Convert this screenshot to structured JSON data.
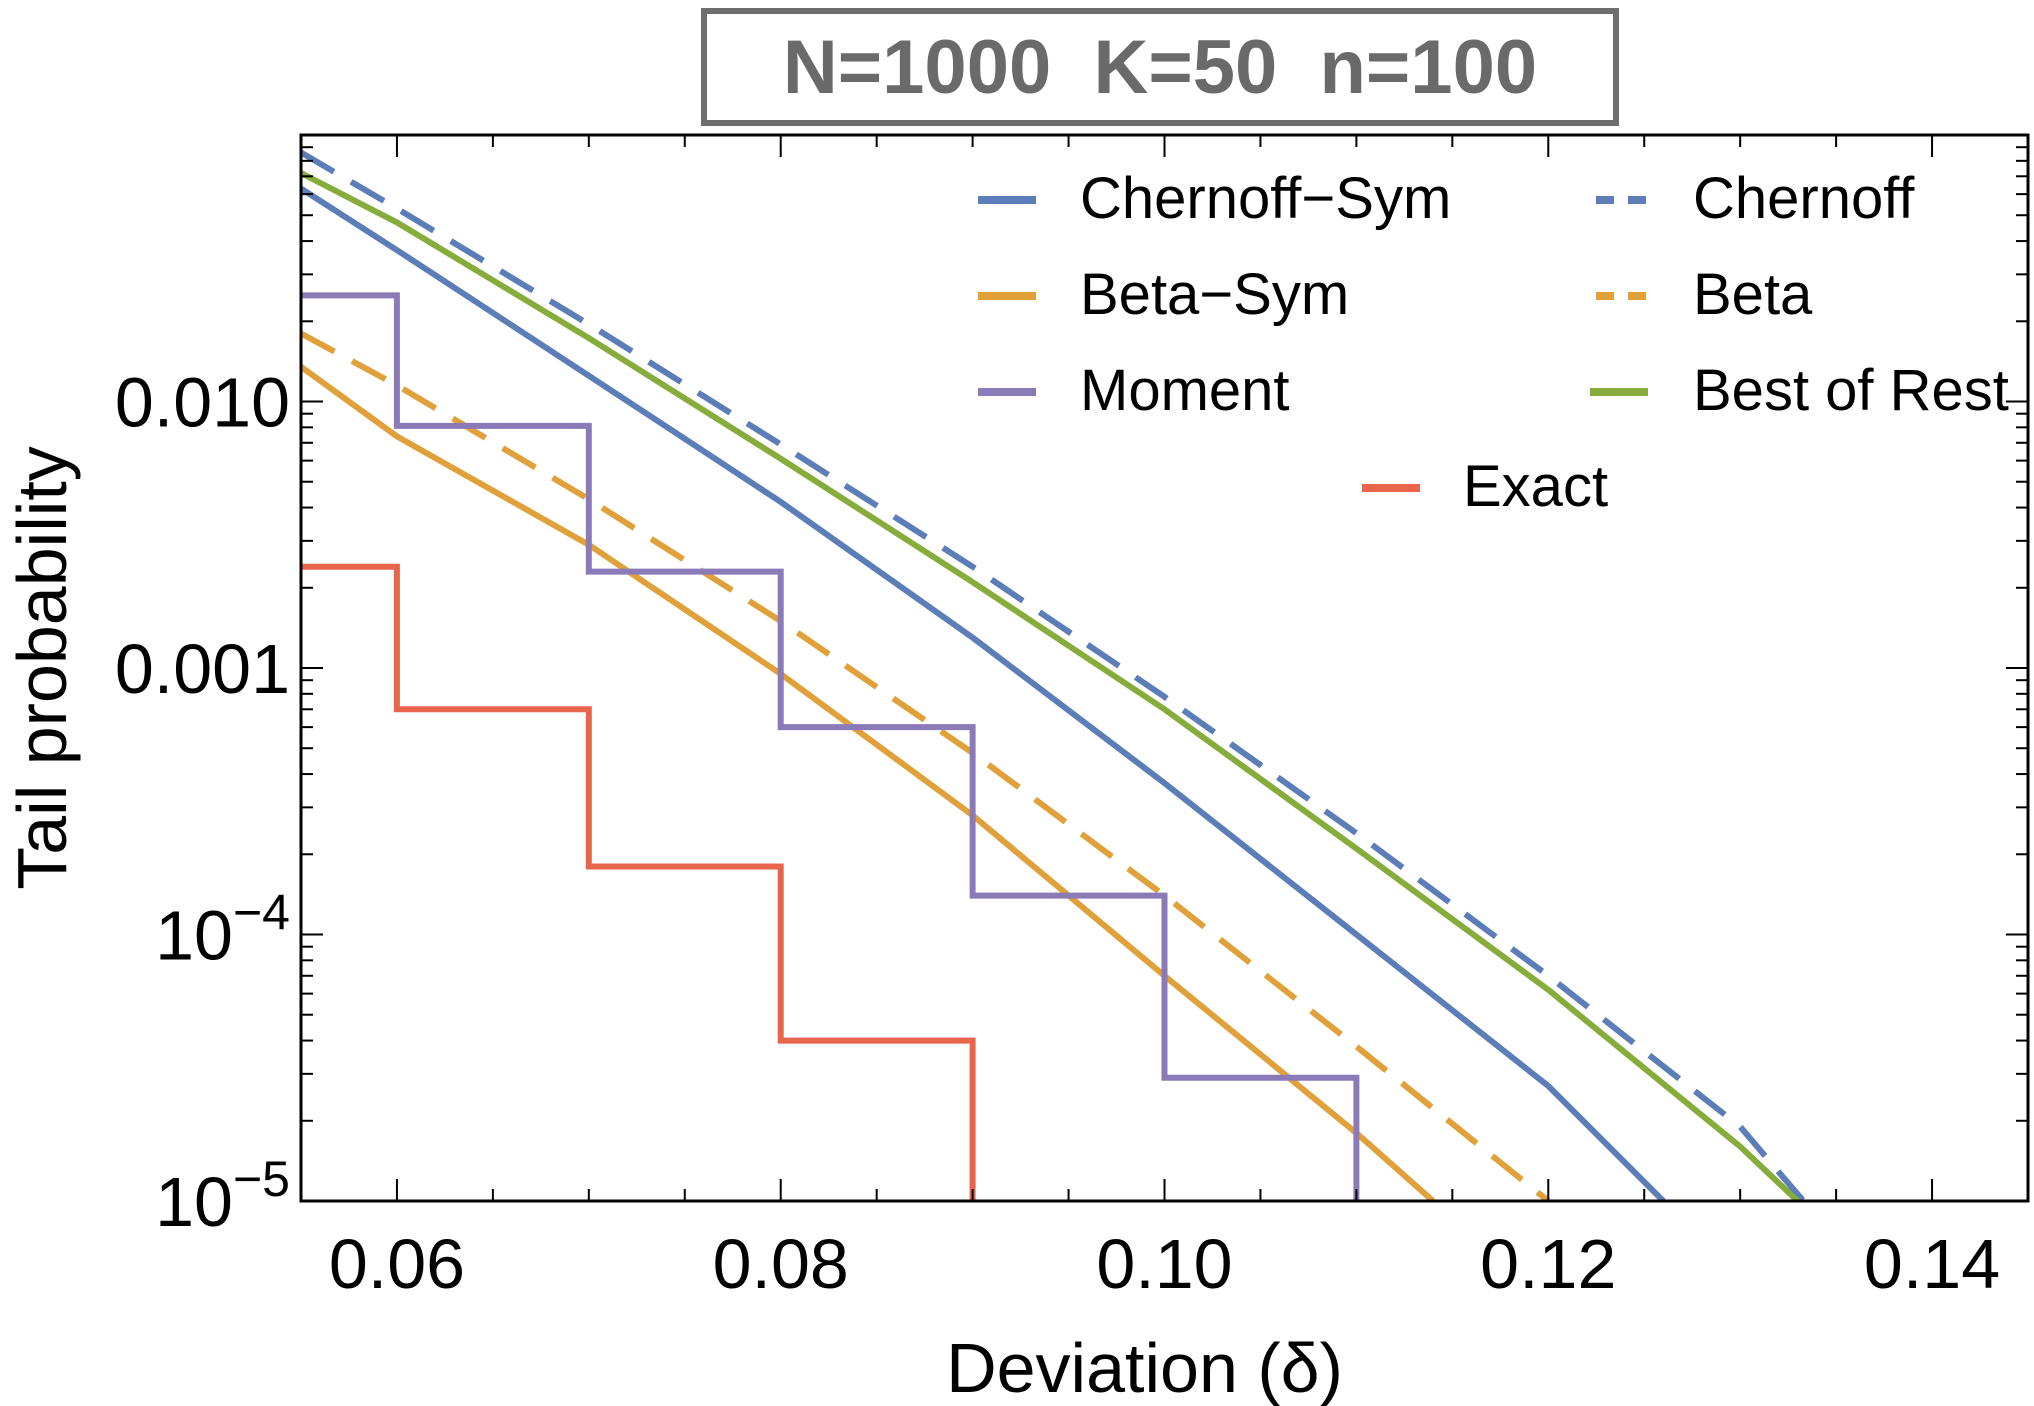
{
  "chart_data": {
    "type": "line",
    "title": "N=1000  K=50  n=100",
    "xlabel": "Deviation (δ)",
    "ylabel": "Tail probability",
    "xlim": [
      0.055,
      0.145
    ],
    "ylim": [
      1e-05,
      0.1
    ],
    "yscale": "log",
    "x_ticks": [
      {
        "value": 0.06,
        "label": "0.06"
      },
      {
        "value": 0.08,
        "label": "0.08"
      },
      {
        "value": 0.1,
        "label": "0.10"
      },
      {
        "value": 0.12,
        "label": "0.12"
      },
      {
        "value": 0.14,
        "label": "0.14"
      }
    ],
    "y_ticks": [
      {
        "value": 0.01,
        "label": "0.010",
        "base": "",
        "exp": ""
      },
      {
        "value": 0.001,
        "label": "0.001",
        "base": "",
        "exp": ""
      },
      {
        "value": 0.0001,
        "label": "",
        "base": "10",
        "exp": "−4"
      },
      {
        "value": 1e-05,
        "label": "",
        "base": "10",
        "exp": "−5"
      }
    ],
    "legend_position": "top-right",
    "series": [
      {
        "name": "Chernoff−Sym",
        "color": "#5b7db8",
        "style": "solid",
        "x": [
          0.055,
          0.06,
          0.07,
          0.08,
          0.09,
          0.1,
          0.11,
          0.12,
          0.126
        ],
        "y": [
          0.063,
          0.037,
          0.0125,
          0.0042,
          0.0013,
          0.00037,
          0.0001,
          2.7e-05,
          1e-05
        ]
      },
      {
        "name": "Chernoff",
        "color": "#5b7db8",
        "style": "dashed",
        "x": [
          0.055,
          0.06,
          0.07,
          0.08,
          0.09,
          0.1,
          0.11,
          0.12,
          0.13,
          0.1333
        ],
        "y": [
          0.086,
          0.053,
          0.0195,
          0.0069,
          0.0024,
          0.00078,
          0.00024,
          7e-05,
          1.9e-05,
          1e-05
        ]
      },
      {
        "name": "Beta−Sym",
        "color": "#e0a03a",
        "style": "solid",
        "x": [
          0.055,
          0.06,
          0.07,
          0.08,
          0.09,
          0.1,
          0.11,
          0.114
        ],
        "y": [
          0.0135,
          0.0074,
          0.0029,
          0.00095,
          0.00028,
          7e-05,
          1.8e-05,
          1e-05
        ]
      },
      {
        "name": "Beta",
        "color": "#e0a03a",
        "style": "dashed",
        "x": [
          0.055,
          0.06,
          0.07,
          0.08,
          0.09,
          0.1,
          0.11,
          0.12
        ],
        "y": [
          0.018,
          0.0115,
          0.0043,
          0.0015,
          0.00048,
          0.00014,
          3.8e-05,
          1e-05
        ]
      },
      {
        "name": "Moment",
        "color": "#8a7ab8",
        "style": "step",
        "x": [
          0.055,
          0.06,
          0.06,
          0.07,
          0.07,
          0.08,
          0.08,
          0.09,
          0.09,
          0.1,
          0.1,
          0.11,
          0.11
        ],
        "y": [
          0.025,
          0.025,
          0.0081,
          0.0081,
          0.0023,
          0.0023,
          0.0006,
          0.0006,
          0.00014,
          0.00014,
          2.9e-05,
          2.9e-05,
          1e-05
        ]
      },
      {
        "name": "Best of Rest",
        "color": "#86ad3c",
        "style": "solid",
        "x": [
          0.055,
          0.06,
          0.07,
          0.08,
          0.09,
          0.1,
          0.11,
          0.12,
          0.13,
          0.133
        ],
        "y": [
          0.072,
          0.047,
          0.0173,
          0.0061,
          0.0021,
          0.0007,
          0.00021,
          6.2e-05,
          1.6e-05,
          1e-05
        ]
      },
      {
        "name": "Exact",
        "color": "#e8644a",
        "style": "step",
        "x": [
          0.055,
          0.06,
          0.06,
          0.07,
          0.07,
          0.08,
          0.08,
          0.09,
          0.09
        ],
        "y": [
          0.0024,
          0.0024,
          0.0007,
          0.0007,
          0.00018,
          0.00018,
          4e-05,
          4e-05,
          1e-05
        ]
      }
    ]
  }
}
